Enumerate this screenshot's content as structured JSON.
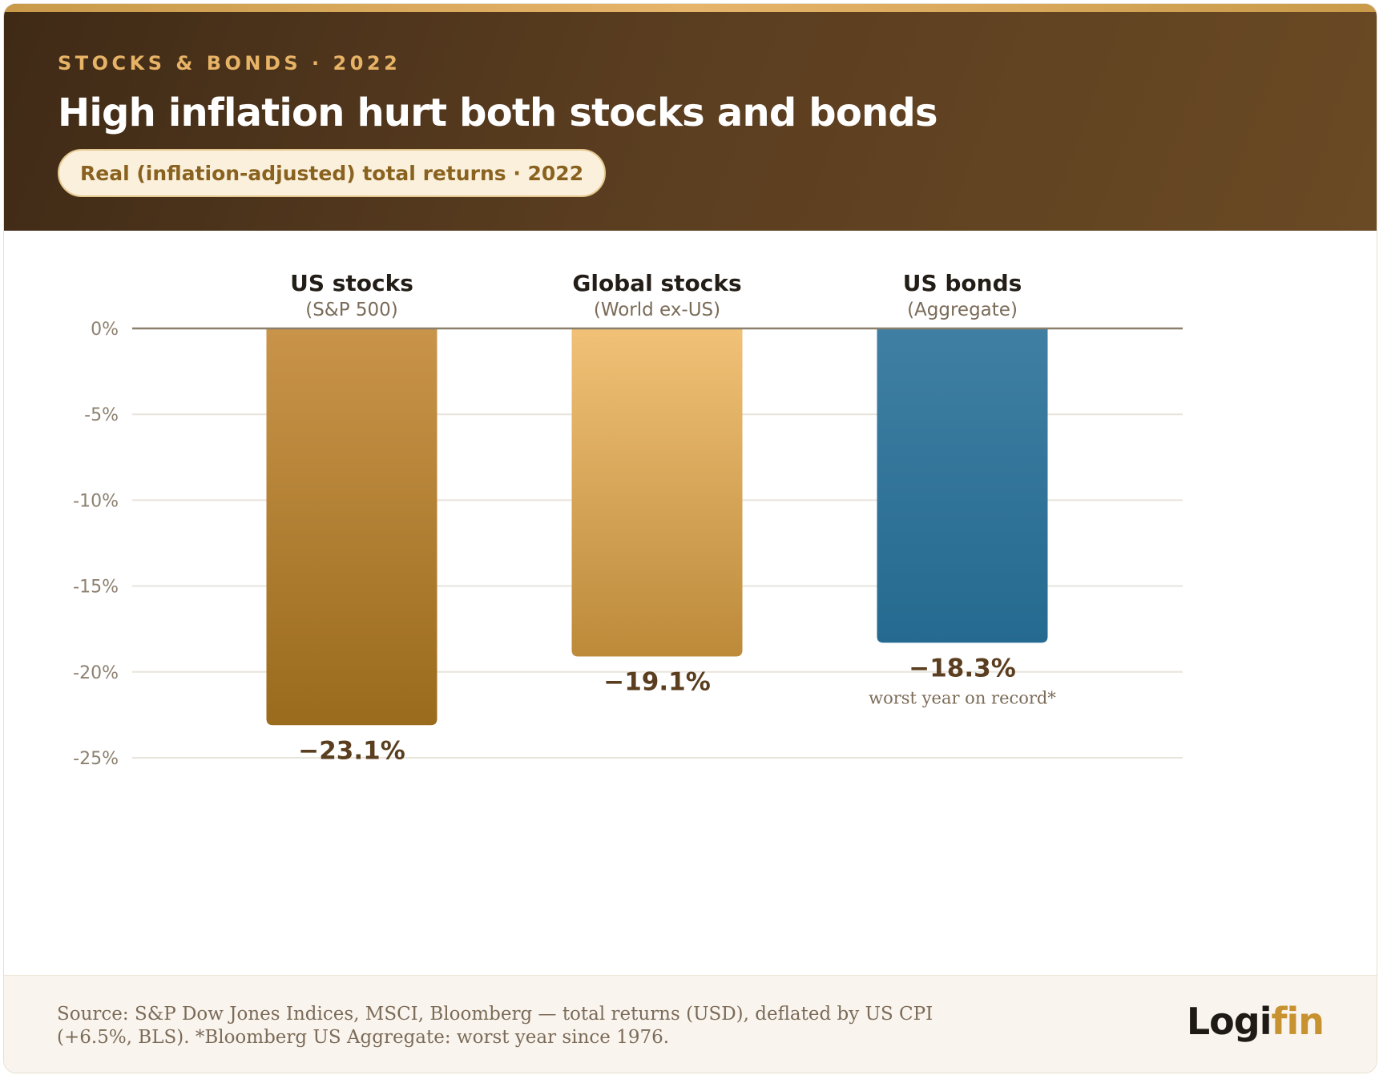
{
  "header": {
    "kicker": "STOCKS & BONDS · 2022",
    "title": "High inflation hurt both stocks and bonds",
    "subtitle_pill": "Real (inflation-adjusted) total returns · 2022"
  },
  "chart_data": {
    "type": "bar",
    "categories": [
      "US stocks",
      "Global stocks",
      "US bonds"
    ],
    "category_sublabels": [
      "(S&P 500)",
      "(World ex-US)",
      "(Aggregate)"
    ],
    "values": [
      -23.1,
      -19.1,
      -18.3
    ],
    "value_labels": [
      "−23.1%",
      "−19.1%",
      "−18.3%"
    ],
    "annotations": [
      "",
      "",
      "worst year on record*"
    ],
    "ylim": [
      -25,
      0
    ],
    "yticks": [
      0,
      -5,
      -10,
      -15,
      -20,
      -25
    ],
    "ytick_labels": [
      "0%",
      "-5%",
      "-10%",
      "-15%",
      "-20%",
      "-25%"
    ],
    "grid": true,
    "colors": {
      "us_stocks": [
        "#c9944a",
        "#9a6b1c"
      ],
      "global_stocks": [
        "#f0c177",
        "#bd8a3a"
      ],
      "us_bonds": [
        "#3f7fa3",
        "#256a90"
      ],
      "zero_line": "#8a7f6d",
      "grid": "#e8e4dc"
    }
  },
  "footer": {
    "source_line1": "Source: S&P Dow Jones Indices, MSCI, Bloomberg — total returns (USD), deflated by US CPI",
    "source_line2": "(+6.5%, BLS). *Bloomberg US Aggregate: worst year since 1976.",
    "logo_part1": "Logi",
    "logo_part2": "fin"
  }
}
